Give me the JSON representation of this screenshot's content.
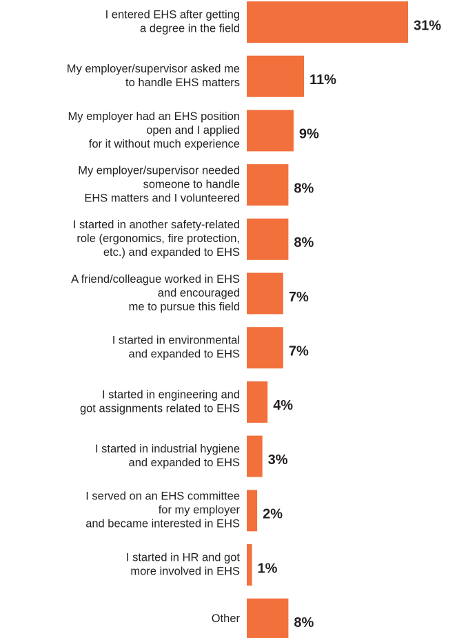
{
  "chart_data": {
    "type": "bar",
    "orientation": "horizontal",
    "color": "#f2703c",
    "categories": [
      [
        "I entered EHS after getting",
        "a degree in the field"
      ],
      [
        "My employer/supervisor asked me",
        "to handle EHS matters"
      ],
      [
        "My employer had an EHS position",
        "open and I applied",
        "for it without much experience"
      ],
      [
        "My employer/supervisor needed",
        "someone to handle",
        "EHS matters and I volunteered"
      ],
      [
        "I started in another safety-related",
        "role (ergonomics, fire protection,",
        "etc.) and expanded to EHS"
      ],
      [
        "A friend/colleague worked in EHS",
        "and encouraged",
        "me to pursue this field"
      ],
      [
        "I started in environmental",
        "and expanded to EHS"
      ],
      [
        "I started in engineering and",
        "got assignments related to EHS"
      ],
      [
        "I started in industrial hygiene",
        "and expanded to EHS"
      ],
      [
        "I served on an EHS committee",
        "for my employer",
        "and became interested in EHS"
      ],
      [
        "I started in HR and got",
        "more involved in EHS"
      ],
      [
        "Other"
      ]
    ],
    "values": [
      31,
      11,
      9,
      8,
      8,
      7,
      7,
      4,
      3,
      2,
      1,
      8
    ],
    "value_labels": [
      "31%",
      "11%",
      "9%",
      "8%",
      "8%",
      "7%",
      "7%",
      "4%",
      "3%",
      "2%",
      "1%",
      "8%"
    ]
  }
}
